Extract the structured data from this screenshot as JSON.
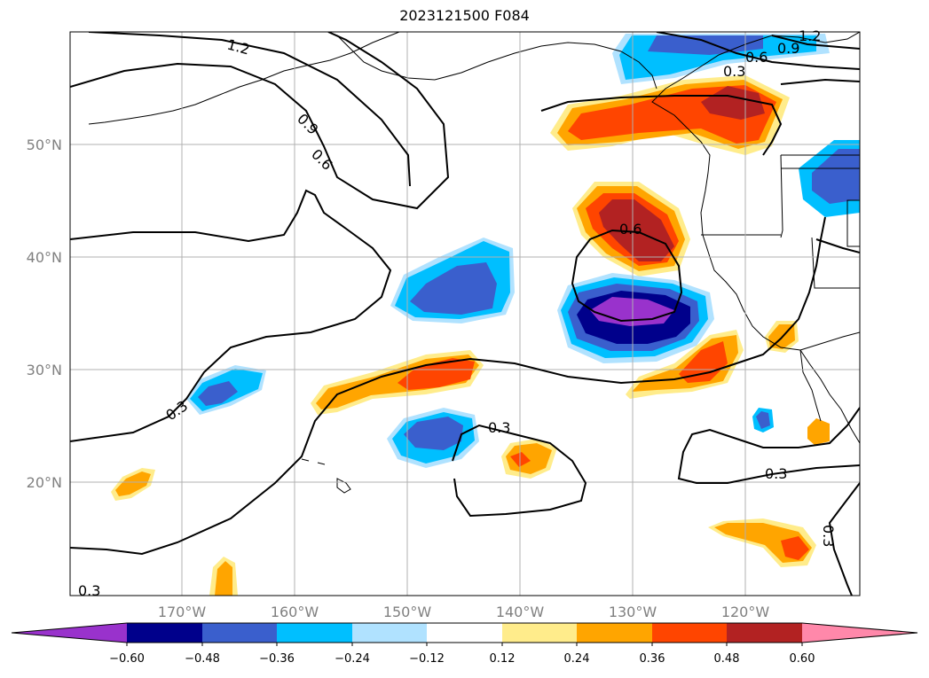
{
  "title": "2023121500 F084",
  "lat_ticks": [
    "50°N",
    "40°N",
    "30°N",
    "20°N"
  ],
  "lon_ticks": [
    "170°W",
    "160°W",
    "150°W",
    "140°W",
    "130°W",
    "120°W"
  ],
  "contour_labels": [
    "1.2",
    "0.9",
    "0.6",
    "0.3",
    "1.2",
    "0.9",
    "0.6",
    "0.3",
    "0.6",
    "0.3",
    "0.3",
    "0.3",
    "0.3"
  ],
  "colorbar": {
    "ticks": [
      "−0.60",
      "−0.48",
      "−0.36",
      "−0.24",
      "−0.12",
      "0.12",
      "0.24",
      "0.36",
      "0.48",
      "0.60"
    ],
    "colors": [
      "#9932cc",
      "#00008b",
      "#3a5fcd",
      "#00bfff",
      "#b0e2ff",
      "#ffffff",
      "#ffec8b",
      "#ffa500",
      "#ff4500",
      "#b22222",
      "#ff88aa"
    ]
  }
}
